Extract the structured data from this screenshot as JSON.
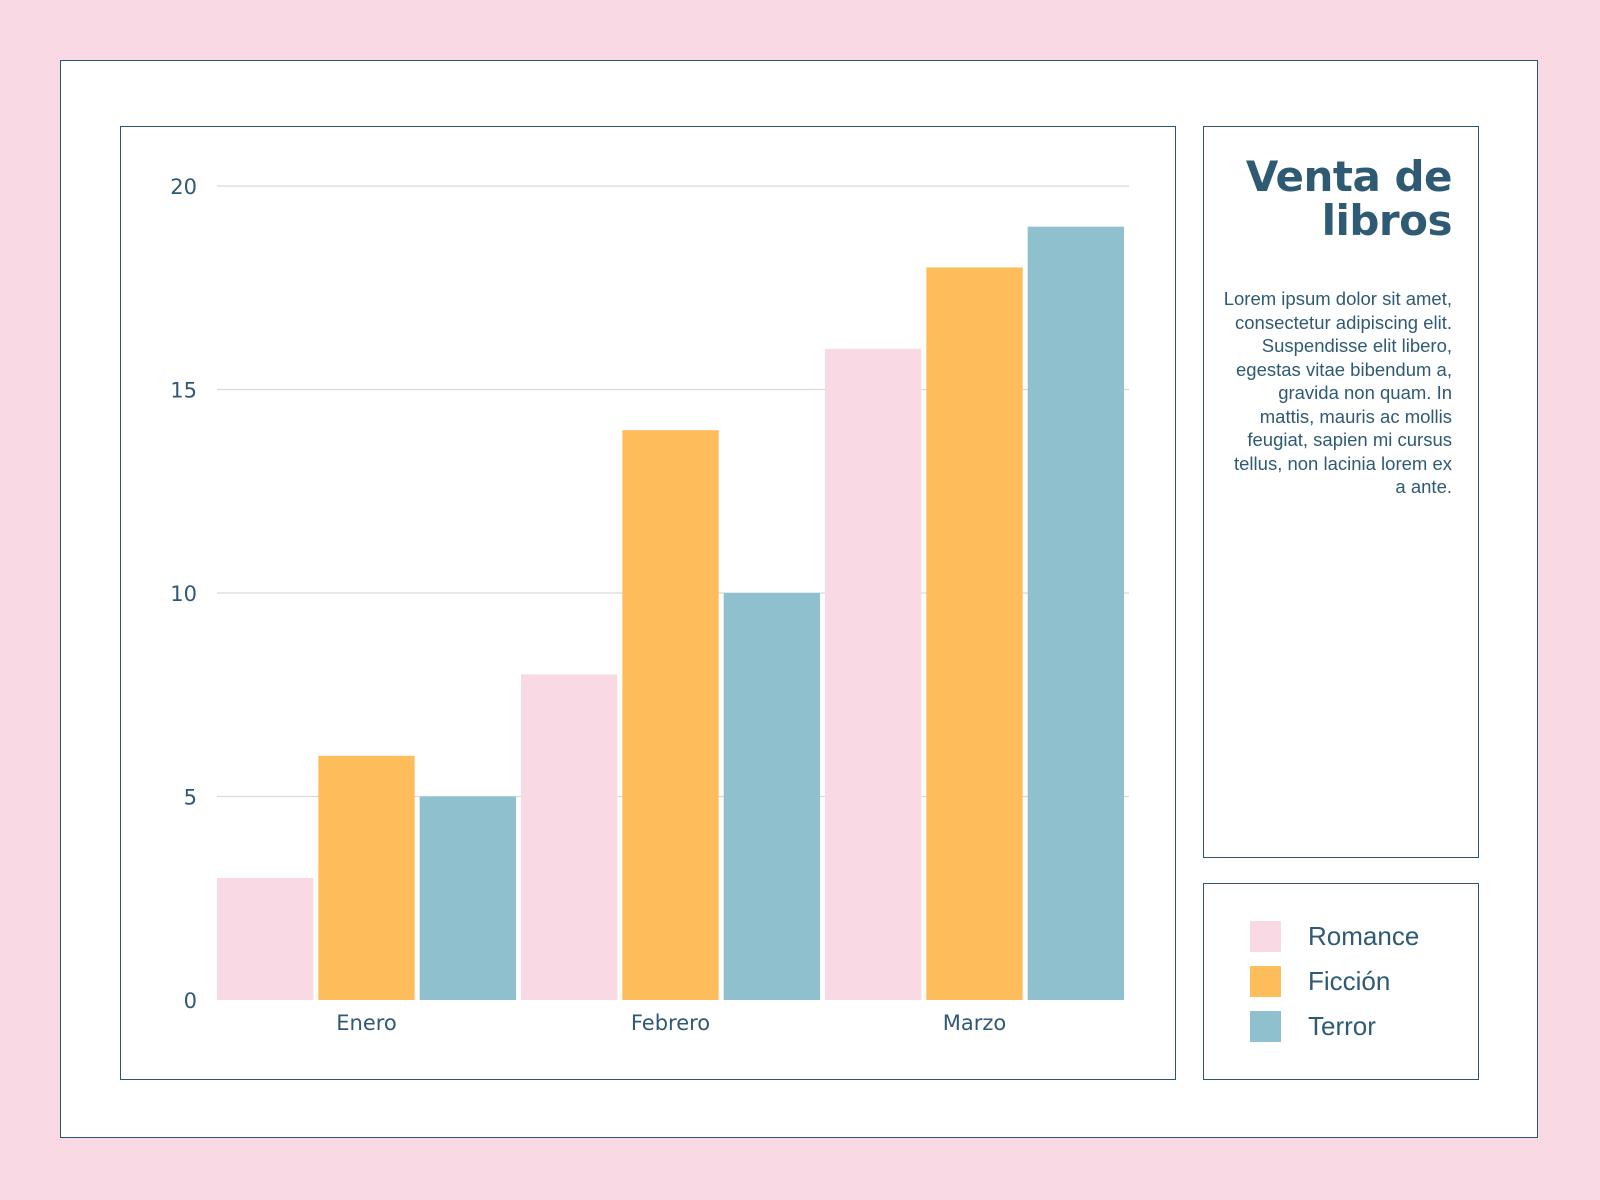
{
  "title": "Venta de libros",
  "description": "Lorem ipsum dolor sit amet, consectetur adipiscing elit. Suspendisse elit libero, egestas vitae bibendum a, gravida non quam. In mattis, mauris ac mollis feugiat, sapien mi cursus tellus, non lacinia lorem ex a ante.",
  "colors": {
    "background": "#f9d9e3",
    "border": "#2e5572",
    "text": "#2f5a73",
    "gridline": "#d5dade"
  },
  "legend": [
    {
      "label": "Romance",
      "color": "#f9d9e3"
    },
    {
      "label": "Ficción",
      "color": "#fdbd5a"
    },
    {
      "label": "Terror",
      "color": "#8fc0cd"
    }
  ],
  "chart_data": {
    "type": "bar",
    "categories": [
      "Enero",
      "Febrero",
      "Marzo"
    ],
    "series": [
      {
        "name": "Romance",
        "values": [
          3,
          8,
          16
        ],
        "color": "#f9d9e3"
      },
      {
        "name": "Ficción",
        "values": [
          6,
          14,
          18
        ],
        "color": "#fdbd5a"
      },
      {
        "name": "Terror",
        "values": [
          5,
          10,
          19
        ],
        "color": "#8fc0cd"
      }
    ],
    "ylim": [
      0,
      20
    ],
    "yticks": [
      0,
      5,
      10,
      15,
      20
    ],
    "grid": true,
    "legend_position": "right"
  }
}
